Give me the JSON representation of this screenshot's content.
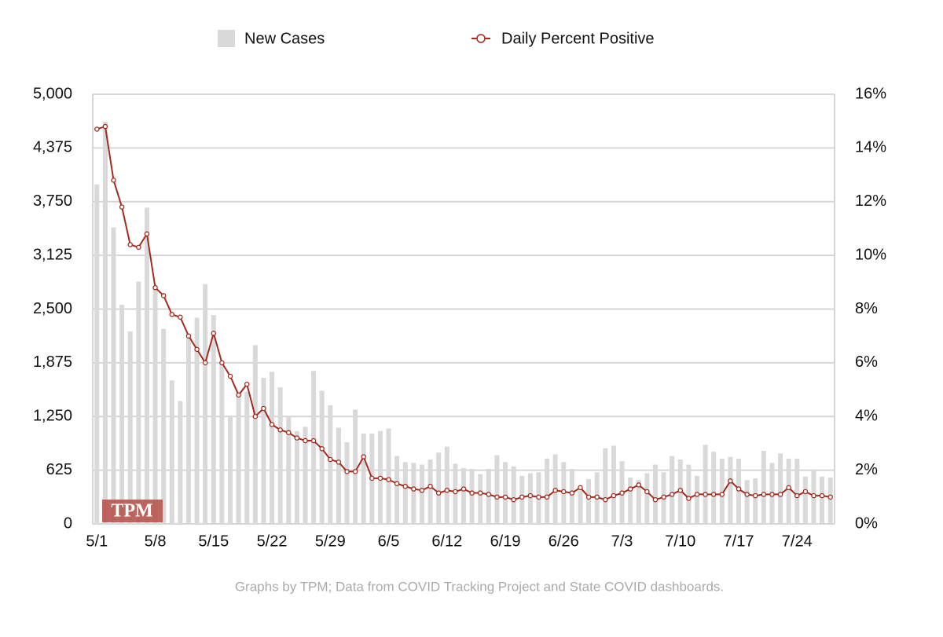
{
  "chart_data": {
    "type": "bar-line",
    "categories": [
      "5/1",
      null,
      null,
      null,
      null,
      null,
      null,
      "5/8",
      null,
      null,
      null,
      null,
      null,
      null,
      "5/15",
      null,
      null,
      null,
      null,
      null,
      null,
      "5/22",
      null,
      null,
      null,
      null,
      null,
      null,
      "5/29",
      null,
      null,
      null,
      null,
      null,
      null,
      "6/5",
      null,
      null,
      null,
      null,
      null,
      null,
      "6/12",
      null,
      null,
      null,
      null,
      null,
      null,
      "6/19",
      null,
      null,
      null,
      null,
      null,
      null,
      "6/26",
      null,
      null,
      null,
      null,
      null,
      null,
      "7/3",
      null,
      null,
      null,
      null,
      null,
      null,
      "7/10",
      null,
      null,
      null,
      null,
      null,
      null,
      "7/17",
      null,
      null,
      null,
      null,
      null,
      null,
      "7/24",
      null,
      null,
      null,
      null
    ],
    "series": [
      {
        "name": "New Cases",
        "color": "#d9d9d9",
        "values": [
          3950,
          4680,
          3450,
          2550,
          2240,
          2820,
          3680,
          2740,
          2270,
          1670,
          1430,
          2170,
          2400,
          2790,
          2430,
          1880,
          1260,
          1500,
          1540,
          2080,
          1700,
          1770,
          1590,
          1260,
          1080,
          1130,
          1780,
          1550,
          1380,
          1120,
          950,
          1330,
          1050,
          1050,
          1080,
          1110,
          790,
          720,
          710,
          690,
          750,
          830,
          900,
          700,
          650,
          640,
          580,
          640,
          800,
          720,
          670,
          560,
          590,
          600,
          760,
          810,
          720,
          640,
          390,
          520,
          600,
          880,
          910,
          730,
          540,
          510,
          590,
          690,
          600,
          790,
          750,
          690,
          560,
          920,
          840,
          760,
          780,
          760,
          510,
          530,
          850,
          710,
          820,
          760,
          760,
          550,
          630,
          550,
          540
        ]
      },
      {
        "name": "Daily Percent Positive",
        "color": "#a52a1e",
        "axis": "y2",
        "values": [
          14.7,
          14.8,
          12.8,
          11.8,
          10.4,
          10.3,
          10.8,
          8.8,
          8.5,
          7.8,
          7.7,
          7.0,
          6.5,
          6.0,
          7.1,
          6.0,
          5.5,
          4.8,
          5.2,
          4.0,
          4.3,
          3.7,
          3.5,
          3.4,
          3.2,
          3.1,
          3.1,
          2.8,
          2.4,
          2.3,
          1.95,
          1.95,
          2.5,
          1.7,
          1.7,
          1.65,
          1.5,
          1.4,
          1.3,
          1.25,
          1.4,
          1.15,
          1.25,
          1.2,
          1.3,
          1.15,
          1.15,
          1.1,
          1.0,
          1.0,
          0.9,
          1.0,
          1.05,
          1.0,
          1.0,
          1.25,
          1.2,
          1.15,
          1.35,
          1.0,
          1.0,
          0.9,
          1.05,
          1.15,
          1.3,
          1.45,
          1.2,
          0.9,
          1.0,
          1.1,
          1.25,
          0.95,
          1.1,
          1.1,
          1.1,
          1.1,
          1.6,
          1.3,
          1.1,
          1.05,
          1.1,
          1.1,
          1.1,
          1.35,
          1.05,
          1.2,
          1.05,
          1.05,
          1.0
        ]
      }
    ],
    "ylim": [
      0,
      5000
    ],
    "yticks": [
      0,
      625,
      {
        "value": 1250,
        "label": "1,250"
      },
      {
        "value": 1875,
        "label": "1,875"
      },
      {
        "value": 2500,
        "label": "2,500"
      },
      {
        "value": 3125,
        "label": "3,125"
      },
      {
        "value": 3750,
        "label": "3,750"
      },
      {
        "value": 4375,
        "label": "4,375"
      },
      {
        "value": 5000,
        "label": "5,000"
      }
    ],
    "y2lim": [
      0,
      16
    ],
    "y2ticks": [
      {
        "value": 0,
        "label": "0%"
      },
      {
        "value": 2,
        "label": "2%"
      },
      {
        "value": 4,
        "label": "4%"
      },
      {
        "value": 6,
        "label": "6%"
      },
      {
        "value": 8,
        "label": "8%"
      },
      {
        "value": 10,
        "label": "10%"
      },
      {
        "value": 12,
        "label": "12%"
      },
      {
        "value": 14,
        "label": "14%"
      },
      {
        "value": 16,
        "label": "16%"
      }
    ],
    "grid": true,
    "legend": "top",
    "logo": "TPM",
    "source": "Graphs by TPM; Data from COVID Tracking Project and State COVID dashboards."
  }
}
